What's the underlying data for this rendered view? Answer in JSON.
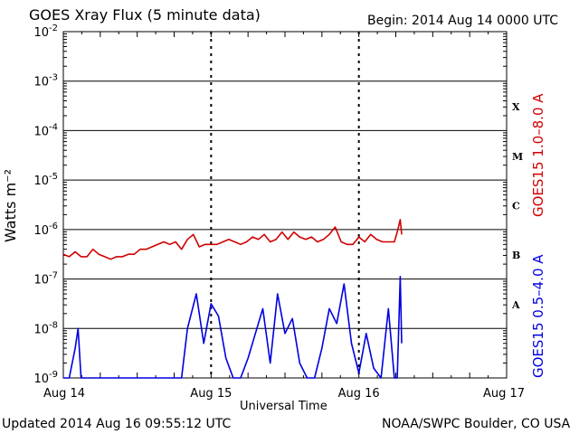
{
  "header": {
    "title": "GOES Xray Flux (5 minute data)",
    "begin": "Begin:  2014 Aug 14 0000 UTC"
  },
  "footer": {
    "updated": "Updated 2014 Aug 16 09:55:12 UTC",
    "source": "NOAA/SWPC Boulder, CO USA"
  },
  "chart_data": {
    "type": "line",
    "title": "GOES Xray Flux (5 minute data)",
    "xlabel": "Universal Time",
    "ylabel": "Watts m⁻²",
    "yscale": "log",
    "ylim": [
      "1e-9",
      "1e-2"
    ],
    "xlim": [
      "Aug 14",
      "Aug 17"
    ],
    "y_ticks": [
      {
        "v": "1e-2",
        "base": "10",
        "exp": "-2"
      },
      {
        "v": "1e-3",
        "base": "10",
        "exp": "-3"
      },
      {
        "v": "1e-4",
        "base": "10",
        "exp": "-4"
      },
      {
        "v": "1e-5",
        "base": "10",
        "exp": "-5"
      },
      {
        "v": "1e-6",
        "base": "10",
        "exp": "-6"
      },
      {
        "v": "1e-7",
        "base": "10",
        "exp": "-7"
      },
      {
        "v": "1e-8",
        "base": "10",
        "exp": "-8"
      },
      {
        "v": "1e-9",
        "base": "10",
        "exp": "-9"
      }
    ],
    "x_ticks": [
      "Aug 14",
      "Aug 15",
      "Aug 16",
      "Aug 17"
    ],
    "flare_classes": [
      "X",
      "M",
      "C",
      "B",
      "A"
    ],
    "grid": true,
    "series": [
      {
        "name": "GOES15 1.0–8.0 A",
        "color": "#d00000",
        "x_days": [
          0,
          0.04,
          0.08,
          0.12,
          0.16,
          0.2,
          0.24,
          0.28,
          0.32,
          0.36,
          0.4,
          0.44,
          0.48,
          0.52,
          0.56,
          0.6,
          0.64,
          0.68,
          0.72,
          0.76,
          0.8,
          0.84,
          0.88,
          0.92,
          0.96,
          1.0,
          1.04,
          1.08,
          1.12,
          1.16,
          1.2,
          1.24,
          1.28,
          1.32,
          1.36,
          1.4,
          1.44,
          1.48,
          1.52,
          1.56,
          1.6,
          1.64,
          1.68,
          1.72,
          1.76,
          1.8,
          1.84,
          1.88,
          1.92,
          1.96,
          2.0,
          2.04,
          2.08,
          2.12,
          2.16,
          2.2,
          2.24,
          2.26,
          2.28,
          2.29
        ],
        "y_log10": [
          -6.5,
          -6.55,
          -6.45,
          -6.55,
          -6.55,
          -6.4,
          -6.5,
          -6.55,
          -6.6,
          -6.55,
          -6.55,
          -6.5,
          -6.5,
          -6.4,
          -6.4,
          -6.35,
          -6.3,
          -6.25,
          -6.3,
          -6.25,
          -6.4,
          -6.2,
          -6.1,
          -6.35,
          -6.3,
          -6.3,
          -6.3,
          -6.25,
          -6.2,
          -6.25,
          -6.3,
          -6.25,
          -6.15,
          -6.2,
          -6.1,
          -6.25,
          -6.2,
          -6.05,
          -6.2,
          -6.05,
          -6.15,
          -6.2,
          -6.15,
          -6.25,
          -6.2,
          -6.1,
          -5.95,
          -6.25,
          -6.3,
          -6.3,
          -6.15,
          -6.25,
          -6.1,
          -6.2,
          -6.25,
          -6.25,
          -6.25,
          -6.05,
          -5.8,
          -6.1
        ]
      },
      {
        "name": "GOES15 0.5–4.0 A",
        "color": "#0000e0",
        "x_days": [
          0,
          0.04,
          0.08,
          0.1,
          0.12,
          0.16,
          0.2,
          0.3,
          0.4,
          0.5,
          0.6,
          0.7,
          0.8,
          0.84,
          0.9,
          0.95,
          1.0,
          1.05,
          1.1,
          1.15,
          1.2,
          1.25,
          1.3,
          1.35,
          1.4,
          1.45,
          1.5,
          1.55,
          1.6,
          1.65,
          1.7,
          1.75,
          1.8,
          1.85,
          1.9,
          1.95,
          2.0,
          2.05,
          2.1,
          2.15,
          2.2,
          2.24,
          2.26,
          2.28,
          2.29
        ],
        "y_log10": [
          -9,
          -9,
          -8.4,
          -8.0,
          -9,
          -9,
          -9,
          -9,
          -9,
          -9,
          -9,
          -9,
          -9,
          -8.0,
          -7.3,
          -8.3,
          -7.5,
          -7.75,
          -8.6,
          -9,
          -9,
          -8.6,
          -8.1,
          -7.6,
          -8.7,
          -7.3,
          -8.1,
          -7.8,
          -8.7,
          -9,
          -9,
          -8.4,
          -7.6,
          -7.9,
          -7.1,
          -8.3,
          -8.9,
          -8.1,
          -8.8,
          -9,
          -7.6,
          -9,
          -9,
          -6.95,
          -8.3
        ]
      }
    ]
  }
}
